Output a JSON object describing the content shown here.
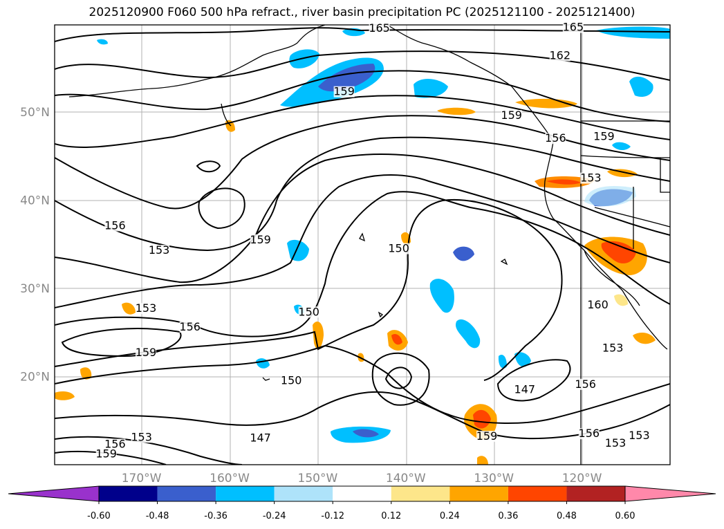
{
  "title": "2025120900 F060 500 hPa refract., river basin precipitation PC (2025121100 - 2025121400)",
  "map": {
    "lat_labels": [
      {
        "text": "50°N",
        "lat": 50
      },
      {
        "text": "40°N",
        "lat": 40
      },
      {
        "text": "30°N",
        "lat": 30
      },
      {
        "text": "20°N",
        "lat": 20
      }
    ],
    "lon_labels": [
      {
        "text": "170°W",
        "lon": -170
      },
      {
        "text": "160°W",
        "lon": -160
      },
      {
        "text": "150°W",
        "lon": -150
      },
      {
        "text": "140°W",
        "lon": -140
      },
      {
        "text": "130°W",
        "lon": -130
      },
      {
        "text": "120°W",
        "lon": -120
      }
    ],
    "contour_labels": [
      {
        "text": "165",
        "lon": -143,
        "lat": 59.2
      },
      {
        "text": "165",
        "lon": -121,
        "lat": 59.3
      },
      {
        "text": "162",
        "lon": -122.5,
        "lat": 56.1
      },
      {
        "text": "159",
        "lon": -147,
        "lat": 52
      },
      {
        "text": "159",
        "lon": -128,
        "lat": 49.3
      },
      {
        "text": "156",
        "lon": -123,
        "lat": 46.7
      },
      {
        "text": "159",
        "lon": -117.5,
        "lat": 46.9
      },
      {
        "text": "153",
        "lon": -119,
        "lat": 42.2
      },
      {
        "text": "156",
        "lon": -173,
        "lat": 36.8
      },
      {
        "text": "153",
        "lon": -168,
        "lat": 34
      },
      {
        "text": "159",
        "lon": -156.5,
        "lat": 35.2
      },
      {
        "text": "150",
        "lon": -140.8,
        "lat": 34.2
      },
      {
        "text": "153",
        "lon": -169.5,
        "lat": 27.4
      },
      {
        "text": "156",
        "lon": -164.5,
        "lat": 25.3
      },
      {
        "text": "150",
        "lon": -151,
        "lat": 27
      },
      {
        "text": "159",
        "lon": -169.5,
        "lat": 22.4
      },
      {
        "text": "150",
        "lon": -153,
        "lat": 19.2
      },
      {
        "text": "160",
        "lon": -118.2,
        "lat": 27.8
      },
      {
        "text": "153",
        "lon": -116.5,
        "lat": 22.9
      },
      {
        "text": "147",
        "lon": -126.5,
        "lat": 18.2
      },
      {
        "text": "156",
        "lon": -119.6,
        "lat": 18.8
      },
      {
        "text": "147",
        "lon": -156.5,
        "lat": 12.7
      },
      {
        "text": "153",
        "lon": -170,
        "lat": 12.8
      },
      {
        "text": "156",
        "lon": -173,
        "lat": 12.0
      },
      {
        "text": "159",
        "lon": -174,
        "lat": 10.9
      },
      {
        "text": "159",
        "lon": -130.8,
        "lat": 12.9
      },
      {
        "text": "156",
        "lon": -119.2,
        "lat": 13.2
      },
      {
        "text": "153",
        "lon": -116.2,
        "lat": 12.1
      },
      {
        "text": "153",
        "lon": -113.5,
        "lat": 13.0
      }
    ]
  },
  "colorbar": {
    "colors": [
      "#9932cc",
      "#00008b",
      "#3a5fcd",
      "#00bfff",
      "#aee3fa",
      "#ffffff",
      "#fde68a",
      "#ffa500",
      "#ff4500",
      "#b22222",
      "#ff88aa"
    ],
    "ticks": [
      "-0.60",
      "-0.48",
      "-0.36",
      "-0.24",
      "-0.12",
      "0.12",
      "0.24",
      "0.36",
      "0.48",
      "0.60"
    ]
  }
}
